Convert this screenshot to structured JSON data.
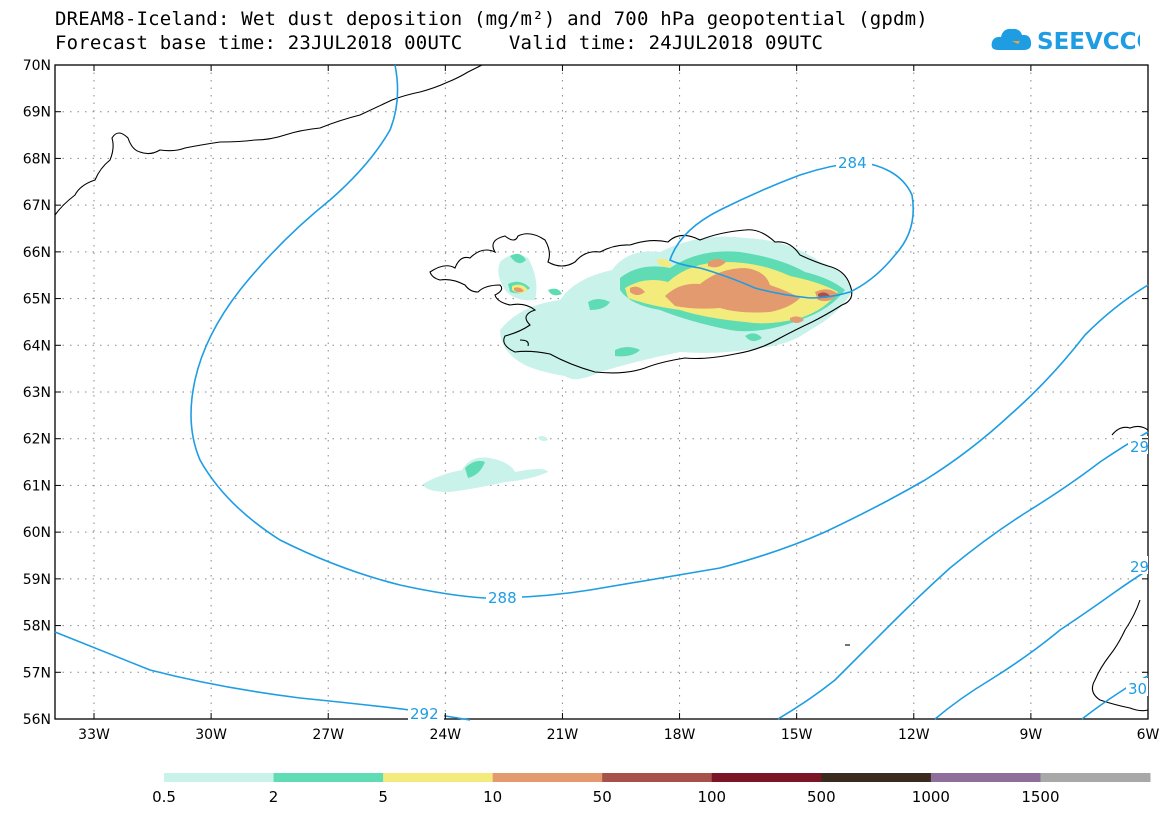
{
  "header": {
    "title_line1": "DREAM8-Iceland: Wet dust deposition (mg/m²) and 700 hPa geopotential (gpdm)",
    "title_line2": "Forecast base time: 23JUL2018 00UTC    Valid time: 24JUL2018 09UTC"
  },
  "logo": {
    "text": "SEEVCCC",
    "color": "#1e9de3",
    "icon": "cloud-icon"
  },
  "map": {
    "lat_labels": [
      "70N",
      "69N",
      "68N",
      "67N",
      "66N",
      "65N",
      "64N",
      "63N",
      "62N",
      "61N",
      "60N",
      "59N",
      "58N",
      "57N",
      "56N"
    ],
    "lon_labels": [
      "33W",
      "30W",
      "27W",
      "24W",
      "21W",
      "18W",
      "15W",
      "12W",
      "9W",
      "6W"
    ],
    "contour_color": "#1e9de3",
    "contour_labels": [
      "284",
      "288",
      "292",
      "29",
      "29",
      "30"
    ]
  },
  "legend": {
    "colors": [
      "#c8f2ea",
      "#5fdcb4",
      "#f3ec7d",
      "#e39a6e",
      "#a65149",
      "#7b1426",
      "#3a2b1e",
      "#8e6e9b",
      "#a8a8a8"
    ],
    "labels": [
      "0.5",
      "2",
      "5",
      "10",
      "50",
      "100",
      "500",
      "1000",
      "1500"
    ]
  }
}
